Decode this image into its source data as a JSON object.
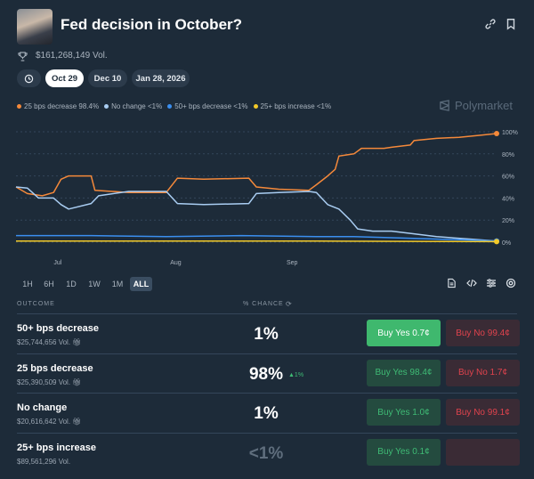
{
  "header": {
    "title": "Fed decision in October?",
    "volume": "$161,268,149 Vol."
  },
  "dates": [
    "Oct 29",
    "Dec 10",
    "Jan 28, 2026"
  ],
  "legend": [
    {
      "label": "25 bps decrease 98.4%",
      "color": "#f5893a"
    },
    {
      "label": "No change <1%",
      "color": "#a9cdf2"
    },
    {
      "label": "50+ bps decrease <1%",
      "color": "#3b8ff0"
    },
    {
      "label": "25+ bps increase <1%",
      "color": "#f2c928"
    }
  ],
  "brand": "Polymarket",
  "ranges": [
    "1H",
    "6H",
    "1D",
    "1W",
    "1M",
    "ALL"
  ],
  "table": {
    "outcome_header": "OUTCOME",
    "chance_header": "% CHANCE",
    "rows": [
      {
        "name": "50+ bps decrease",
        "vol": "$25,744,656 Vol.",
        "pct": "1%",
        "delta": "",
        "yes": "Buy Yes 0.7¢",
        "no": "Buy No 99.4¢"
      },
      {
        "name": "25 bps decrease",
        "vol": "$25,390,509 Vol.",
        "pct": "98%",
        "delta": "▲1%",
        "yes": "Buy Yes 98.4¢",
        "no": "Buy No 1.7¢"
      },
      {
        "name": "No change",
        "vol": "$20,616,642 Vol.",
        "pct": "1%",
        "delta": "",
        "yes": "Buy Yes 1.0¢",
        "no": "Buy No 99.1¢"
      },
      {
        "name": "25+ bps increase",
        "vol": "$89,561,296 Vol.",
        "pct": "<1%",
        "delta": "",
        "yes": "Buy Yes 0.1¢",
        "no": ""
      }
    ]
  },
  "chart_data": {
    "type": "line",
    "x_unit": "days since Jun 20",
    "xlim": [
      0,
      128
    ],
    "ylim": [
      0,
      100
    ],
    "y_ticks": [
      "0%",
      "20%",
      "40%",
      "60%",
      "80%",
      "100%"
    ],
    "x_ticks": [
      {
        "label": "Jul",
        "x": 11
      },
      {
        "label": "Aug",
        "x": 42
      },
      {
        "label": "Sep",
        "x": 73
      }
    ],
    "series": [
      {
        "name": "25 bps decrease",
        "color": "#f5893a",
        "points": [
          [
            0,
            50
          ],
          [
            3,
            44
          ],
          [
            7,
            42
          ],
          [
            10,
            45
          ],
          [
            12,
            57
          ],
          [
            14,
            60
          ],
          [
            20,
            60
          ],
          [
            21,
            47
          ],
          [
            30,
            45
          ],
          [
            40,
            45
          ],
          [
            43,
            58
          ],
          [
            50,
            57
          ],
          [
            62,
            58
          ],
          [
            64,
            50
          ],
          [
            70,
            48
          ],
          [
            78,
            47
          ],
          [
            80,
            52
          ],
          [
            83,
            60
          ],
          [
            85,
            66
          ],
          [
            86,
            78
          ],
          [
            90,
            80
          ],
          [
            92,
            85
          ],
          [
            98,
            85
          ],
          [
            100,
            86
          ],
          [
            105,
            88
          ],
          [
            106,
            92
          ],
          [
            112,
            94
          ],
          [
            118,
            95
          ],
          [
            124,
            97
          ],
          [
            128,
            98.4
          ]
        ]
      },
      {
        "name": "No change",
        "color": "#a9cdf2",
        "points": [
          [
            0,
            50
          ],
          [
            3,
            49
          ],
          [
            6,
            40
          ],
          [
            10,
            40
          ],
          [
            12,
            34
          ],
          [
            14,
            30
          ],
          [
            20,
            35
          ],
          [
            22,
            42
          ],
          [
            30,
            46
          ],
          [
            40,
            46
          ],
          [
            43,
            35
          ],
          [
            50,
            34
          ],
          [
            62,
            35
          ],
          [
            64,
            44
          ],
          [
            70,
            45
          ],
          [
            78,
            46
          ],
          [
            80,
            45
          ],
          [
            83,
            34
          ],
          [
            86,
            30
          ],
          [
            89,
            20
          ],
          [
            91,
            12
          ],
          [
            95,
            10
          ],
          [
            100,
            10
          ],
          [
            105,
            8
          ],
          [
            112,
            5
          ],
          [
            120,
            3
          ],
          [
            128,
            1
          ]
        ]
      },
      {
        "name": "50+ bps decrease",
        "color": "#3b8ff0",
        "points": [
          [
            0,
            6
          ],
          [
            20,
            6
          ],
          [
            40,
            5
          ],
          [
            60,
            6
          ],
          [
            80,
            5
          ],
          [
            90,
            5
          ],
          [
            100,
            4
          ],
          [
            110,
            3
          ],
          [
            120,
            2
          ],
          [
            128,
            1
          ]
        ]
      },
      {
        "name": "25+ bps increase",
        "color": "#f2c928",
        "points": [
          [
            0,
            1
          ],
          [
            40,
            1
          ],
          [
            80,
            1
          ],
          [
            128,
            0.5
          ]
        ]
      }
    ]
  }
}
